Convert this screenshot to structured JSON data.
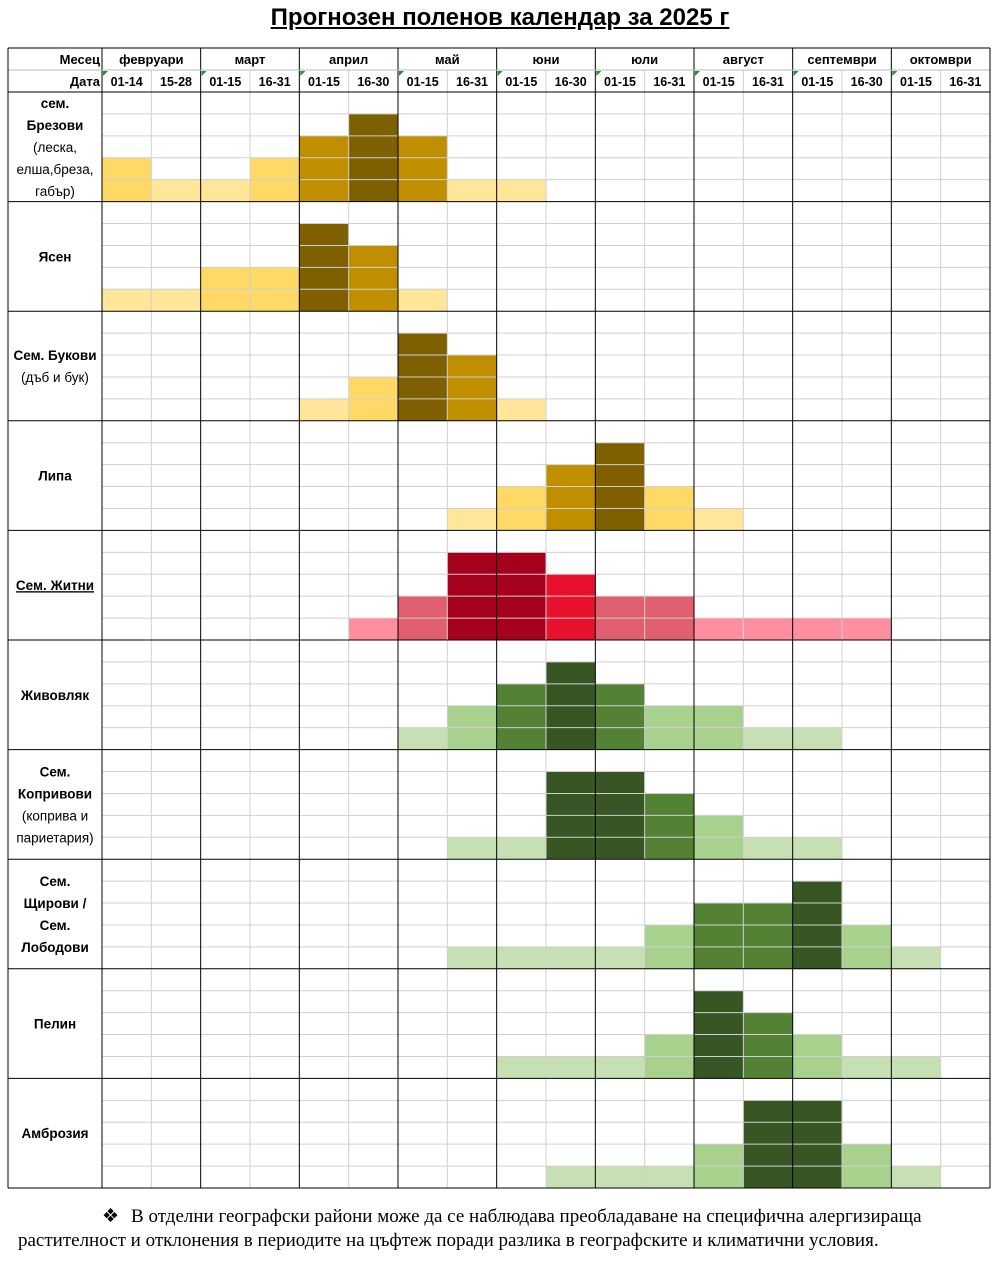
{
  "title": "Прогнозен поленов календар за 2025 г",
  "header": {
    "month_label": "Месец",
    "date_label": "Дата"
  },
  "months": [
    {
      "name": "февруари",
      "periods": [
        "01-14",
        "15-28"
      ]
    },
    {
      "name": "март",
      "periods": [
        "01-15",
        "16-31"
      ]
    },
    {
      "name": "април",
      "periods": [
        "01-15",
        "16-30"
      ]
    },
    {
      "name": "май",
      "periods": [
        "01-15",
        "16-31"
      ]
    },
    {
      "name": "юни",
      "periods": [
        "01-15",
        "16-30"
      ]
    },
    {
      "name": "юли",
      "periods": [
        "01-15",
        "16-31"
      ]
    },
    {
      "name": "август",
      "periods": [
        "01-15",
        "16-31"
      ]
    },
    {
      "name": "септември",
      "periods": [
        "01-15",
        "16-30"
      ]
    },
    {
      "name": "октомври",
      "periods": [
        "01-15",
        "16-31"
      ]
    }
  ],
  "chart_data": {
    "type": "heatmap",
    "title": "Прогнозен поленов календар за 2025 г",
    "max_level": 4,
    "palettes": {
      "yellow": [
        "#FFE699",
        "#FFD966",
        "#BF8F00",
        "#7F6000"
      ],
      "red": [
        "#FF8FA0",
        "#E06070",
        "#E8102C",
        "#A5001E"
      ],
      "green": [
        "#C6E0B4",
        "#A9D18E",
        "#548235",
        "#375623"
      ]
    },
    "series": [
      {
        "name_lines": [
          "сем.",
          "Брезови"
        ],
        "sub_lines": [
          "(леска,",
          "елша,бреза,",
          "габър)"
        ],
        "palette": "yellow",
        "values": [
          2,
          1,
          1,
          2,
          3,
          4,
          3,
          1,
          1,
          0,
          0,
          0,
          0,
          0,
          0,
          0,
          0,
          0
        ]
      },
      {
        "name_lines": [
          "Ясен"
        ],
        "sub_lines": [],
        "palette": "yellow",
        "values": [
          1,
          1,
          2,
          2,
          4,
          3,
          1,
          0,
          0,
          0,
          0,
          0,
          0,
          0,
          0,
          0,
          0,
          0
        ]
      },
      {
        "name_lines": [
          "Сем. Букови"
        ],
        "sub_lines": [
          "(дъб и бук)"
        ],
        "palette": "yellow",
        "values": [
          0,
          0,
          0,
          0,
          1,
          2,
          4,
          3,
          1,
          0,
          0,
          0,
          0,
          0,
          0,
          0,
          0,
          0
        ]
      },
      {
        "name_lines": [
          "Липа"
        ],
        "sub_lines": [],
        "palette": "yellow",
        "values": [
          0,
          0,
          0,
          0,
          0,
          0,
          0,
          1,
          2,
          3,
          4,
          2,
          1,
          0,
          0,
          0,
          0,
          0
        ]
      },
      {
        "name_lines": [
          "Сем. Житни"
        ],
        "sub_lines": [],
        "palette": "red",
        "underline": true,
        "values": [
          0,
          0,
          0,
          0,
          0,
          1,
          2,
          4,
          4,
          3,
          2,
          2,
          1,
          1,
          1,
          1,
          0,
          0
        ]
      },
      {
        "name_lines": [
          "Живовляк"
        ],
        "sub_lines": [],
        "palette": "green",
        "values": [
          0,
          0,
          0,
          0,
          0,
          0,
          1,
          2,
          3,
          4,
          3,
          2,
          2,
          1,
          1,
          0,
          0,
          0
        ]
      },
      {
        "name_lines": [
          "Сем.",
          "Копривови"
        ],
        "sub_lines": [
          "(коприва и",
          "париетария)"
        ],
        "palette": "green",
        "values": [
          0,
          0,
          0,
          0,
          0,
          0,
          0,
          1,
          1,
          4,
          4,
          3,
          2,
          1,
          1,
          0,
          0,
          0
        ]
      },
      {
        "name_lines": [
          "Сем.",
          "Щирови /",
          "Сем.",
          "Лободови"
        ],
        "sub_lines": [],
        "palette": "green",
        "values": [
          0,
          0,
          0,
          0,
          0,
          0,
          0,
          1,
          1,
          1,
          1,
          2,
          3,
          3,
          4,
          2,
          1,
          0
        ]
      },
      {
        "name_lines": [
          "Пелин"
        ],
        "sub_lines": [],
        "palette": "green",
        "values": [
          0,
          0,
          0,
          0,
          0,
          0,
          0,
          0,
          1,
          1,
          1,
          2,
          4,
          3,
          2,
          1,
          1,
          0
        ]
      },
      {
        "name_lines": [
          "Амброзия"
        ],
        "sub_lines": [],
        "palette": "green",
        "values": [
          0,
          0,
          0,
          0,
          0,
          0,
          0,
          0,
          0,
          1,
          1,
          1,
          2,
          4,
          4,
          2,
          1,
          0
        ]
      }
    ]
  },
  "footnote": {
    "bullet": "❖",
    "text": "В отделни географски райони може да се наблюдава преобладаване на специфична алергизираща растителност и отклонения в периодите на цъфтеж поради разлика в географските и климатични условия."
  }
}
